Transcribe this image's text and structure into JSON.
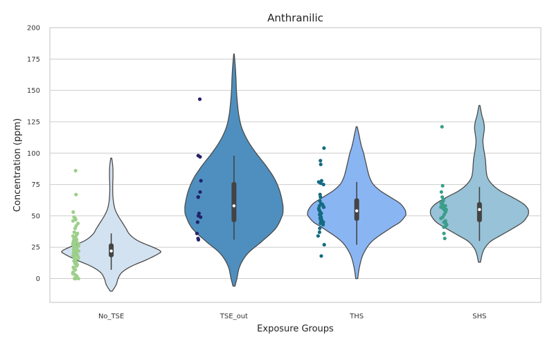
{
  "chart_data": {
    "type": "violin",
    "title": "Anthranilic",
    "xlabel": "Exposure Groups",
    "ylabel": "Concentration (ppm)",
    "ylim": [
      -19,
      200
    ],
    "yticks": [
      0,
      25,
      50,
      75,
      100,
      125,
      150,
      175,
      200
    ],
    "grid": "horizontal",
    "categories": [
      "No_TSE",
      "TSE_out",
      "THS",
      "SHS"
    ],
    "groups": [
      {
        "name": "No_TSE",
        "violin_color": "#d3e2f0",
        "point_color": "#9ccf8a",
        "box": {
          "min": 7,
          "q1": 17,
          "median": 22,
          "q3": 28,
          "max": 36
        },
        "violin_range": [
          -10,
          96
        ],
        "density": [
          [
            -10,
            0.02
          ],
          [
            -5,
            0.1
          ],
          [
            0,
            0.14
          ],
          [
            5,
            0.22
          ],
          [
            10,
            0.42
          ],
          [
            15,
            0.72
          ],
          [
            20,
            0.97
          ],
          [
            22,
            1.0
          ],
          [
            25,
            0.85
          ],
          [
            30,
            0.55
          ],
          [
            35,
            0.38
          ],
          [
            40,
            0.3
          ],
          [
            45,
            0.22
          ],
          [
            50,
            0.14
          ],
          [
            55,
            0.08
          ],
          [
            60,
            0.05
          ],
          [
            65,
            0.035
          ],
          [
            70,
            0.03
          ],
          [
            75,
            0.03
          ],
          [
            80,
            0.035
          ],
          [
            85,
            0.035
          ],
          [
            90,
            0.03
          ],
          [
            96,
            0.01
          ]
        ],
        "points": [
          86,
          67,
          53,
          49,
          48,
          47,
          46,
          44,
          42,
          40,
          37,
          36,
          35,
          34,
          33,
          32,
          31,
          30,
          30,
          29,
          29,
          28,
          28,
          27,
          27,
          26,
          26,
          25,
          25,
          24,
          24,
          23,
          23,
          22,
          22,
          21,
          21,
          20,
          20,
          19,
          19,
          18,
          18,
          17,
          17,
          16,
          15,
          14,
          13,
          12,
          11,
          10,
          9,
          8,
          7,
          5,
          4,
          3,
          2,
          1,
          0,
          0,
          0,
          0
        ]
      },
      {
        "name": "TSE_out",
        "violin_color": "#4e8fbf",
        "point_color": "#25206a",
        "box": {
          "min": 31,
          "q1": 45,
          "median": 58,
          "q3": 77,
          "max": 98
        },
        "violin_range": [
          -6,
          179
        ],
        "density": [
          [
            -6,
            0.02
          ],
          [
            0,
            0.06
          ],
          [
            10,
            0.12
          ],
          [
            20,
            0.28
          ],
          [
            30,
            0.58
          ],
          [
            40,
            0.85
          ],
          [
            50,
            0.98
          ],
          [
            55,
            1.0
          ],
          [
            60,
            0.99
          ],
          [
            70,
            0.93
          ],
          [
            80,
            0.82
          ],
          [
            90,
            0.65
          ],
          [
            100,
            0.45
          ],
          [
            110,
            0.28
          ],
          [
            120,
            0.16
          ],
          [
            130,
            0.1
          ],
          [
            140,
            0.07
          ],
          [
            150,
            0.05
          ],
          [
            160,
            0.04
          ],
          [
            170,
            0.025
          ],
          [
            179,
            0.005
          ]
        ],
        "points": [
          143,
          98,
          97,
          78,
          69,
          65,
          65,
          52,
          50,
          49,
          45,
          36,
          32,
          31
        ]
      },
      {
        "name": "THS",
        "violin_color": "#8ab5f3",
        "point_color": "#146b82",
        "box": {
          "min": 27,
          "q1": 46,
          "median": 54,
          "q3": 64,
          "max": 77
        },
        "violin_range": [
          0,
          121
        ],
        "density": [
          [
            0,
            0.02
          ],
          [
            10,
            0.06
          ],
          [
            20,
            0.14
          ],
          [
            30,
            0.32
          ],
          [
            40,
            0.68
          ],
          [
            45,
            0.88
          ],
          [
            50,
            0.99
          ],
          [
            52,
            1.0
          ],
          [
            55,
            0.98
          ],
          [
            60,
            0.88
          ],
          [
            65,
            0.68
          ],
          [
            70,
            0.48
          ],
          [
            75,
            0.34
          ],
          [
            80,
            0.27
          ],
          [
            85,
            0.23
          ],
          [
            90,
            0.2
          ],
          [
            95,
            0.17
          ],
          [
            100,
            0.14
          ],
          [
            105,
            0.1
          ],
          [
            110,
            0.07
          ],
          [
            115,
            0.045
          ],
          [
            121,
            0.01
          ]
        ],
        "points": [
          104,
          94,
          91,
          78,
          77,
          76,
          75,
          67,
          65,
          62,
          60,
          59,
          58,
          57,
          57,
          56,
          55,
          54,
          53,
          52,
          51,
          50,
          49,
          48,
          47,
          46,
          45,
          44,
          43,
          40,
          37,
          34,
          27,
          18
        ]
      },
      {
        "name": "SHS",
        "violin_color": "#97c2d7",
        "point_color": "#3b9e8a",
        "box": {
          "min": 30,
          "q1": 45,
          "median": 55,
          "q3": 61,
          "max": 73
        },
        "violin_range": [
          13,
          138
        ],
        "density": [
          [
            13,
            0.02
          ],
          [
            20,
            0.06
          ],
          [
            25,
            0.12
          ],
          [
            30,
            0.24
          ],
          [
            35,
            0.46
          ],
          [
            40,
            0.68
          ],
          [
            45,
            0.88
          ],
          [
            50,
            0.98
          ],
          [
            53,
            1.0
          ],
          [
            56,
            0.98
          ],
          [
            60,
            0.88
          ],
          [
            65,
            0.66
          ],
          [
            70,
            0.42
          ],
          [
            75,
            0.26
          ],
          [
            80,
            0.17
          ],
          [
            85,
            0.14
          ],
          [
            90,
            0.13
          ],
          [
            95,
            0.12
          ],
          [
            100,
            0.1
          ],
          [
            105,
            0.08
          ],
          [
            110,
            0.07
          ],
          [
            115,
            0.085
          ],
          [
            120,
            0.1
          ],
          [
            125,
            0.085
          ],
          [
            130,
            0.05
          ],
          [
            135,
            0.025
          ],
          [
            138,
            0.01
          ]
        ],
        "points": [
          121,
          74,
          69,
          65,
          63,
          62,
          61,
          60,
          59,
          58,
          58,
          57,
          57,
          56,
          56,
          55,
          55,
          54,
          53,
          51,
          49,
          48,
          46,
          45,
          44,
          43,
          42,
          41,
          36,
          32
        ]
      }
    ]
  }
}
